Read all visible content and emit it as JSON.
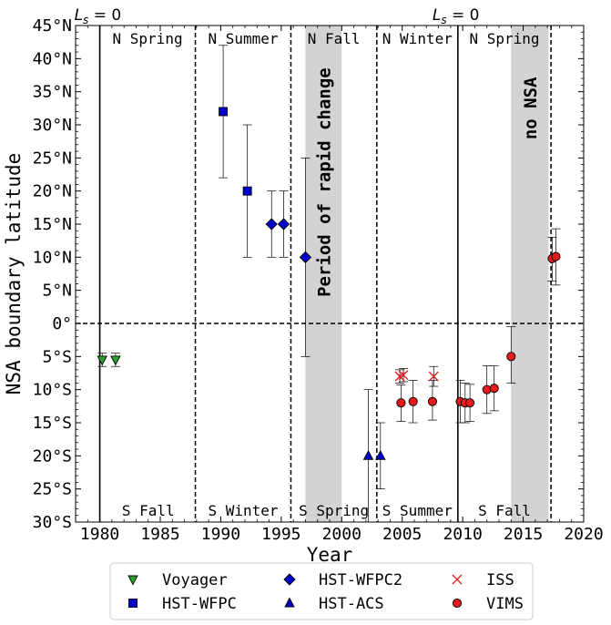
{
  "chart_data": {
    "type": "scatter",
    "xlabel": "Year",
    "ylabel": "NSA boundary latitude",
    "xlim": [
      1978,
      2020
    ],
    "ylim": [
      -30,
      45
    ],
    "x_ticks": [
      1980,
      1985,
      1990,
      1995,
      2000,
      2005,
      2010,
      2015,
      2020
    ],
    "y_ticks": [
      {
        "value": 45,
        "label": "45°N"
      },
      {
        "value": 40,
        "label": "40°N"
      },
      {
        "value": 35,
        "label": "35°N"
      },
      {
        "value": 30,
        "label": "30°N"
      },
      {
        "value": 25,
        "label": "25°N"
      },
      {
        "value": 20,
        "label": "20°N"
      },
      {
        "value": 15,
        "label": "15°N"
      },
      {
        "value": 10,
        "label": "10°N"
      },
      {
        "value": 5,
        "label": "5°N"
      },
      {
        "value": 0,
        "label": "0°"
      },
      {
        "value": -5,
        "label": "5°S"
      },
      {
        "value": -10,
        "label": "10°S"
      },
      {
        "value": -15,
        "label": "15°S"
      },
      {
        "value": -20,
        "label": "20°S"
      },
      {
        "value": -25,
        "label": "25°S"
      },
      {
        "value": -30,
        "label": "30°S"
      }
    ],
    "solid_lines": [
      1980.0,
      2009.6
    ],
    "dashed_lines": [
      1987.9,
      1995.8,
      2002.9,
      2017.3
    ],
    "zero_line": 0,
    "shaded_regions": [
      {
        "x0": 1997.0,
        "x1": 2000.0,
        "label": "Period of rapid change"
      },
      {
        "x0": 2014.0,
        "x1": 2017.1,
        "label": "no NSA"
      }
    ],
    "ls_labels": [
      {
        "x": 1980.0,
        "text": "L_s = 0"
      },
      {
        "x": 2009.6,
        "text": "L_s = 0"
      }
    ],
    "north_seasons": [
      {
        "text": "N Spring",
        "x": 1983.95
      },
      {
        "text": "N Summer",
        "x": 1991.85
      },
      {
        "text": "N Fall",
        "x": 1999.35
      },
      {
        "text": "N Winter",
        "x": 2006.25
      },
      {
        "text": "N Spring",
        "x": 2013.45
      }
    ],
    "south_seasons": [
      {
        "text": "S Fall",
        "x": 1984.0
      },
      {
        "text": "S Winter",
        "x": 1991.85
      },
      {
        "text": "S Spring",
        "x": 1999.35
      },
      {
        "text": "S Summer",
        "x": 2006.25
      },
      {
        "text": "S Fall",
        "x": 2013.45
      }
    ],
    "series": [
      {
        "name": "Voyager",
        "marker": "triangle-down",
        "color": "#2ca02c",
        "points": [
          {
            "x": 1980.2,
            "y": -5.5,
            "err_lo": -6.5,
            "err_hi": -4.5
          },
          {
            "x": 1981.3,
            "y": -5.5,
            "err_lo": -6.5,
            "err_hi": -4.5
          }
        ]
      },
      {
        "name": "HST-WFPC",
        "marker": "square",
        "color": "#0000cc",
        "points": [
          {
            "x": 1990.2,
            "y": 32,
            "err_lo": 22,
            "err_hi": 42
          },
          {
            "x": 1992.2,
            "y": 20,
            "err_lo": 10,
            "err_hi": 30
          }
        ]
      },
      {
        "name": "HST-WFPC2",
        "marker": "diamond",
        "color": "#0000cc",
        "points": [
          {
            "x": 1994.2,
            "y": 15,
            "err_lo": 10,
            "err_hi": 20
          },
          {
            "x": 1995.2,
            "y": 15,
            "err_lo": 10,
            "err_hi": 20
          },
          {
            "x": 1997.0,
            "y": 10,
            "err_lo": -5,
            "err_hi": 25
          }
        ]
      },
      {
        "name": "HST-ACS",
        "marker": "triangle-up",
        "color": "#0000cc",
        "points": [
          {
            "x": 2002.2,
            "y": -20,
            "err_lo": -30,
            "err_hi": -10
          },
          {
            "x": 2003.2,
            "y": -20,
            "err_lo": -25,
            "err_hi": -15
          }
        ]
      },
      {
        "name": "ISS",
        "marker": "x",
        "color": "#e41a1c",
        "points": [
          {
            "x": 2004.8,
            "y": -8,
            "err_lo": -9,
            "err_hi": -7
          },
          {
            "x": 2005.1,
            "y": -7.8,
            "err_lo": -8.8,
            "err_hi": -6.8
          },
          {
            "x": 2007.6,
            "y": -8,
            "err_lo": -9.5,
            "err_hi": -6.5
          }
        ]
      },
      {
        "name": "VIMS",
        "marker": "circle",
        "color": "#e41a1c",
        "points": [
          {
            "x": 2004.9,
            "y": -12,
            "err_lo": -14.8,
            "err_hi": -9.3
          },
          {
            "x": 2005.9,
            "y": -11.8,
            "err_lo": -15,
            "err_hi": -8.6
          },
          {
            "x": 2007.5,
            "y": -11.8,
            "err_lo": -14.6,
            "err_hi": -8.6
          },
          {
            "x": 2009.8,
            "y": -11.8,
            "err_lo": -15,
            "err_hi": -8.6
          },
          {
            "x": 2010.2,
            "y": -12,
            "err_lo": -15,
            "err_hi": -9
          },
          {
            "x": 2010.6,
            "y": -12,
            "err_lo": -14.8,
            "err_hi": -9.2
          },
          {
            "x": 2012.0,
            "y": -10,
            "err_lo": -13.6,
            "err_hi": -6.4
          },
          {
            "x": 2012.6,
            "y": -9.8,
            "err_lo": -13.2,
            "err_hi": -6.4
          },
          {
            "x": 2014.0,
            "y": -5,
            "err_lo": -9,
            "err_hi": -0.5
          },
          {
            "x": 2017.4,
            "y": 9.8,
            "err_lo": 6.4,
            "err_hi": 13
          },
          {
            "x": 2017.7,
            "y": 10.1,
            "err_lo": 5.8,
            "err_hi": 14.3
          }
        ]
      }
    ],
    "legend_placement": "below plot",
    "legend": [
      "Voyager",
      "HST-WFPC",
      "HST-WFPC2",
      "HST-ACS",
      "ISS",
      "VIMS"
    ]
  }
}
